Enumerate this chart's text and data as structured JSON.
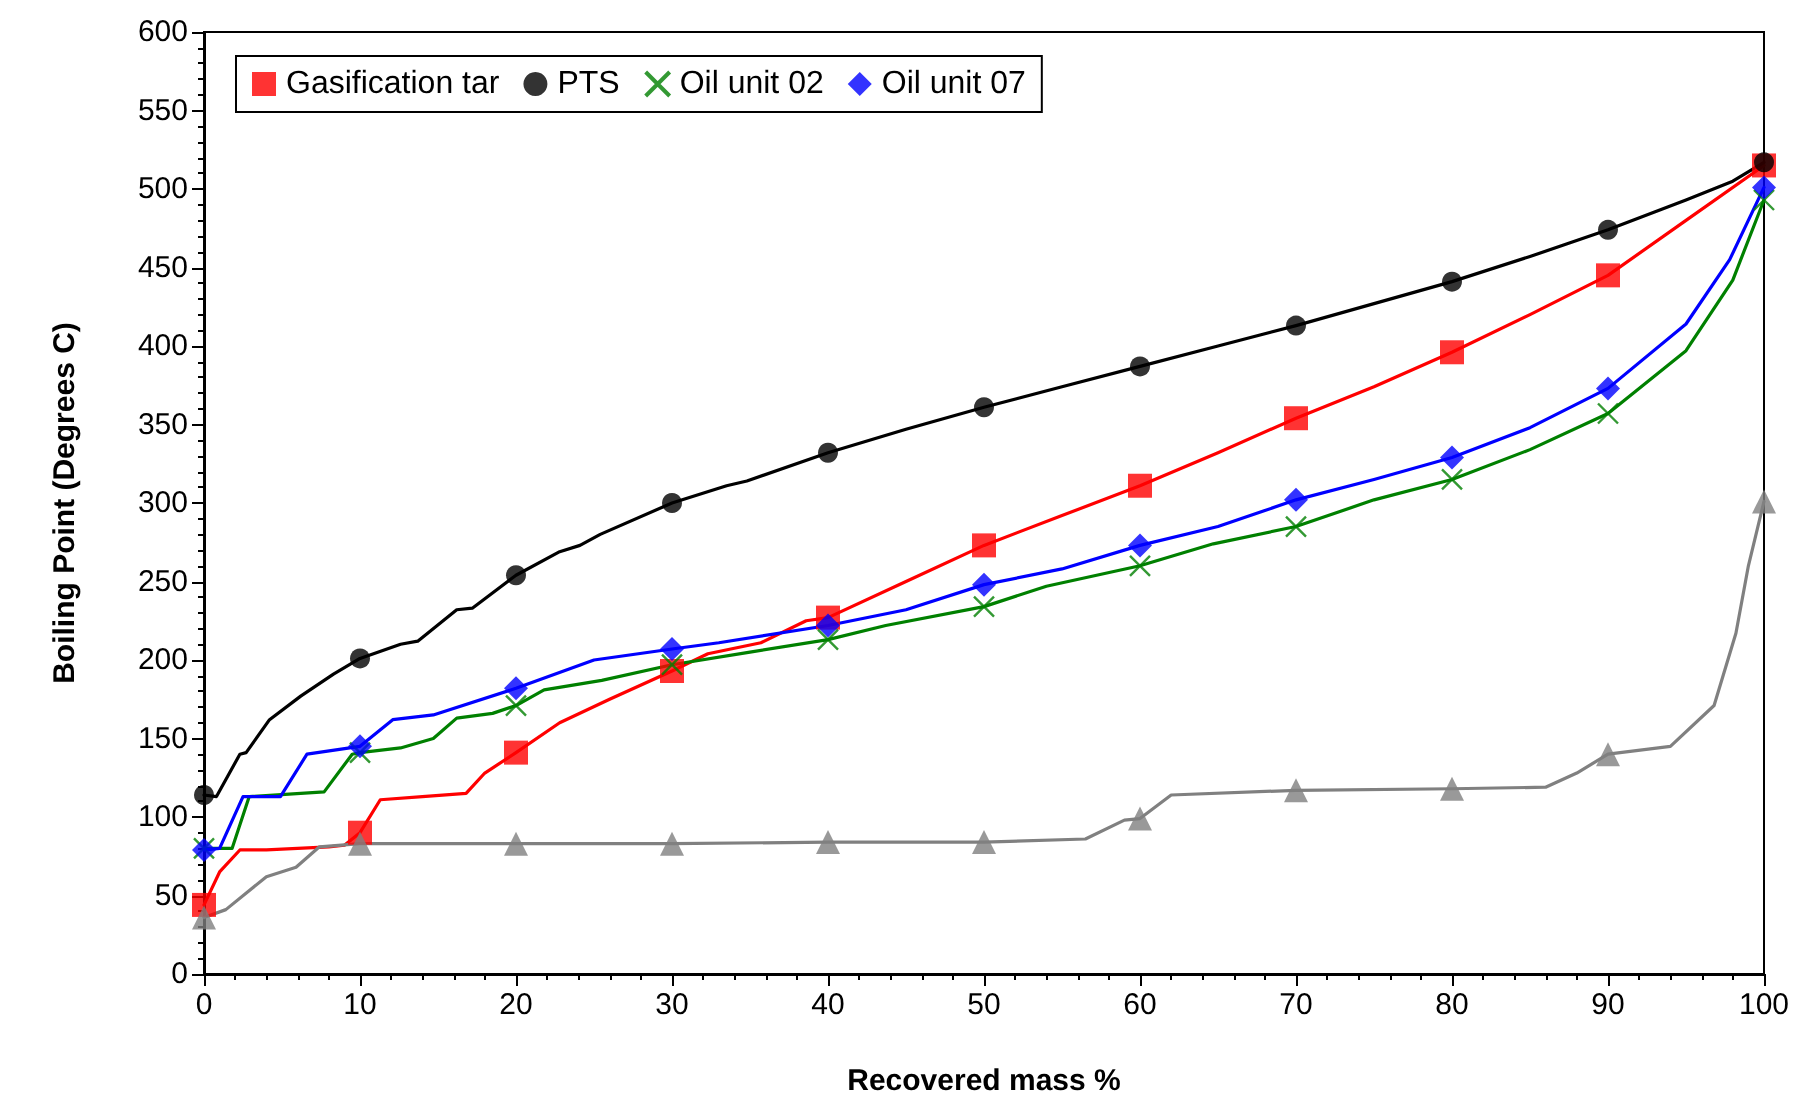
{
  "chart_data": {
    "type": "line",
    "xlabel": "Recovered mass %",
    "ylabel": "Boiling Point (Degrees C)",
    "xlim": [
      0,
      100
    ],
    "xticks": [
      0,
      10,
      20,
      30,
      40,
      50,
      60,
      70,
      80,
      90,
      100
    ],
    "ylim": [
      0,
      600
    ],
    "yticks": [
      0,
      50,
      100,
      150,
      200,
      250,
      300,
      350,
      400,
      450,
      500,
      550,
      600
    ],
    "grid": false,
    "legend": "top left",
    "line_style": "solid",
    "series": [
      {
        "marker": "none",
        "color": "#ff0000",
        "x": [
          0,
          1,
          2.3,
          4,
          6,
          8,
          9,
          10,
          11.3,
          14,
          16.8,
          18,
          20,
          22.8,
          26,
          30,
          32.3,
          35.7,
          38.6,
          40,
          45,
          50,
          55,
          60,
          65,
          70,
          75,
          80,
          85,
          90,
          95,
          100
        ],
        "values": [
          44,
          65,
          79,
          79,
          80,
          81,
          82,
          90,
          111,
          113,
          115,
          128,
          141,
          160,
          175,
          193,
          204,
          211,
          225,
          227,
          250,
          273,
          292,
          311,
          332,
          354,
          374,
          396,
          420,
          445,
          480,
          515
        ]
      },
      {
        "type": "scatter",
        "name": "Gasification tar",
        "marker": "square",
        "color": "#ff0000",
        "x": [
          0,
          10,
          20,
          30,
          40,
          50,
          60,
          70,
          80,
          90,
          100
        ],
        "values": [
          44,
          90,
          141,
          193,
          227,
          273,
          311,
          354,
          396,
          445,
          515
        ]
      },
      {
        "marker": "none",
        "color": "#000000",
        "x": [
          0,
          0.8,
          2.3,
          2.7,
          4.2,
          6.2,
          8.3,
          10,
          12.6,
          13.7,
          16.2,
          17.2,
          20,
          22.8,
          24.1,
          25.4,
          30,
          33.5,
          34.8,
          40,
          45,
          50,
          55,
          60,
          65,
          70,
          75,
          80,
          85,
          90,
          95,
          98,
          100
        ],
        "values": [
          114,
          113,
          140,
          141,
          162,
          177,
          191,
          201,
          210,
          212,
          232,
          233,
          254,
          269,
          273,
          280,
          300,
          311,
          314,
          332,
          347,
          361,
          374,
          387,
          400,
          413,
          427,
          441,
          457,
          474,
          493,
          505,
          517
        ]
      },
      {
        "type": "scatter",
        "name": "PTS",
        "marker": "circle",
        "color": "#000000",
        "x": [
          0,
          10,
          20,
          30,
          40,
          50,
          60,
          70,
          80,
          90,
          100
        ],
        "values": [
          114,
          201,
          254,
          300,
          332,
          361,
          387,
          413,
          441,
          474,
          517
        ]
      },
      {
        "marker": "none",
        "color": "#008000",
        "x": [
          0,
          1.8,
          2.9,
          7.7,
          9.5,
          10,
          12.6,
          14.7,
          16.2,
          18.5,
          20,
          21.8,
          25.5,
          30,
          35,
          40,
          43.7,
          50,
          54,
          60,
          64.7,
          70,
          75,
          80,
          85,
          90,
          95,
          98,
          100
        ],
        "values": [
          80,
          80,
          113,
          116,
          140,
          141,
          144,
          150,
          163,
          166,
          171,
          181,
          187,
          197,
          205,
          213,
          222,
          234,
          247,
          260,
          274,
          285,
          302,
          315,
          334,
          357,
          397,
          442,
          493
        ]
      },
      {
        "type": "scatter",
        "name": "Oil unit 02",
        "marker": "cross",
        "color": "#008000",
        "x": [
          0,
          10,
          20,
          30,
          40,
          50,
          60,
          70,
          80,
          90,
          100
        ],
        "values": [
          80,
          141,
          171,
          197,
          213,
          234,
          260,
          285,
          315,
          357,
          493
        ]
      },
      {
        "marker": "none",
        "color": "#0000ff",
        "x": [
          0,
          1,
          2.5,
          4.9,
          6.6,
          10,
          12.1,
          14.7,
          20,
          25,
          30,
          33,
          40,
          45,
          50,
          55,
          60,
          65,
          70,
          75,
          80,
          85,
          90,
          95,
          97.8,
          100
        ],
        "values": [
          79,
          80,
          113,
          113,
          140,
          145,
          162,
          165,
          182,
          200,
          207,
          211,
          222,
          232,
          248,
          258,
          273,
          285,
          302,
          315,
          329,
          348,
          373,
          414,
          455,
          501
        ]
      },
      {
        "type": "scatter",
        "name": "Oil unit 07",
        "marker": "diamond",
        "color": "#0000ff",
        "x": [
          0,
          10,
          20,
          30,
          40,
          50,
          60,
          70,
          80,
          90,
          100
        ],
        "values": [
          79,
          145,
          182,
          207,
          222,
          248,
          273,
          302,
          329,
          373,
          501
        ]
      },
      {
        "marker": "none",
        "color": "#808080",
        "x": [
          0,
          1.4,
          4,
          5.9,
          7.4,
          10,
          20,
          30,
          40,
          50,
          56.5,
          59,
          60,
          62,
          70,
          80,
          86,
          88,
          90,
          94,
          96.8,
          98.2,
          99,
          100
        ],
        "values": [
          36,
          41,
          62,
          68,
          81,
          83,
          83,
          83,
          84,
          84,
          86,
          98,
          99,
          114,
          117,
          118,
          119,
          128,
          140,
          145,
          171,
          217,
          260,
          301
        ]
      },
      {
        "type": "scatter",
        "marker": "triangle",
        "color": "#808080",
        "x": [
          0,
          10,
          20,
          30,
          40,
          50,
          60,
          70,
          80,
          90,
          100
        ],
        "values": [
          36,
          83,
          83,
          83,
          84,
          84,
          99,
          117,
          118,
          140,
          301
        ]
      }
    ]
  }
}
